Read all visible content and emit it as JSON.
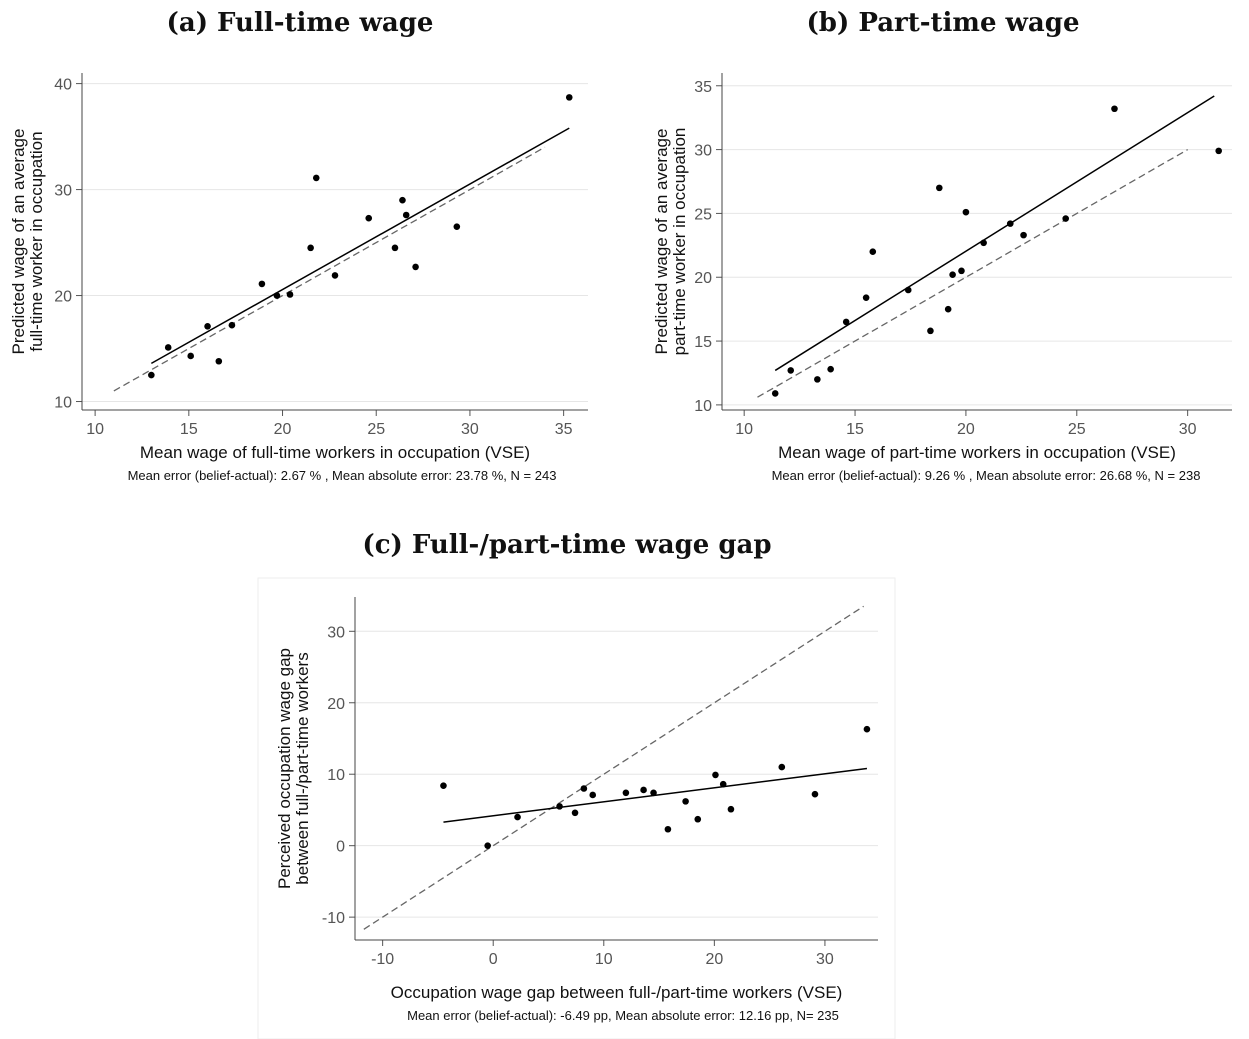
{
  "chart_data": [
    {
      "type": "scatter",
      "title": "(a) Full-time wage",
      "xlabel": "Mean wage of full-time workers in occupation (VSE)",
      "ylabel": "Predicted wage of an average full-time worker in occupation",
      "ylabel_lines": [
        "Predicted wage of an average",
        "full-time worker in occupation"
      ],
      "note": "Mean error (belief-actual): 2.67 % , Mean absolute error: 23.78 %,  N = 243",
      "xlim": [
        9.3,
        36.3
      ],
      "ylim": [
        9.2,
        41.0
      ],
      "xticks": [
        10,
        15,
        20,
        25,
        30,
        35
      ],
      "yticks": [
        10,
        20,
        30,
        40
      ],
      "grid": "horizontal",
      "points": [
        [
          13.0,
          12.5
        ],
        [
          13.9,
          15.1
        ],
        [
          15.1,
          14.3
        ],
        [
          16.0,
          17.1
        ],
        [
          16.6,
          13.8
        ],
        [
          17.3,
          17.2
        ],
        [
          18.9,
          21.1
        ],
        [
          19.7,
          20.0
        ],
        [
          20.4,
          20.1
        ],
        [
          21.5,
          24.5
        ],
        [
          21.8,
          31.1
        ],
        [
          22.8,
          21.9
        ],
        [
          24.6,
          27.3
        ],
        [
          26.0,
          24.5
        ],
        [
          26.4,
          29.0
        ],
        [
          26.6,
          27.6
        ],
        [
          27.1,
          22.7
        ],
        [
          29.3,
          26.5
        ],
        [
          35.3,
          38.7
        ]
      ],
      "fit_line": [
        [
          13.0,
          13.6
        ],
        [
          35.3,
          35.8
        ]
      ],
      "reference_line": [
        [
          11.0,
          11.0
        ],
        [
          34.0,
          34.0
        ]
      ]
    },
    {
      "type": "scatter",
      "title": "(b) Part-time wage",
      "xlabel": "Mean wage of part-time workers in occupation (VSE)",
      "ylabel": "Predicted wage of an average part-time worker in occupation",
      "ylabel_lines": [
        "Predicted wage of an average",
        "part-time worker in occupation"
      ],
      "note": "Mean error (belief-actual): 9.26 % , Mean absolute error: 26.68 %,  N = 238",
      "xlim": [
        9.0,
        32.0
      ],
      "ylim": [
        9.6,
        36.0
      ],
      "xticks": [
        10,
        15,
        20,
        25,
        30
      ],
      "yticks": [
        10,
        15,
        20,
        25,
        30,
        35
      ],
      "grid": "horizontal",
      "points": [
        [
          11.4,
          10.9
        ],
        [
          12.1,
          12.7
        ],
        [
          13.3,
          12.0
        ],
        [
          13.9,
          12.8
        ],
        [
          14.6,
          16.5
        ],
        [
          15.5,
          18.4
        ],
        [
          15.8,
          22.0
        ],
        [
          17.4,
          19.0
        ],
        [
          18.4,
          15.8
        ],
        [
          18.8,
          27.0
        ],
        [
          19.2,
          17.5
        ],
        [
          19.4,
          20.2
        ],
        [
          19.8,
          20.5
        ],
        [
          20.0,
          25.1
        ],
        [
          20.8,
          22.7
        ],
        [
          22.0,
          24.2
        ],
        [
          22.6,
          23.3
        ],
        [
          24.5,
          24.6
        ],
        [
          26.7,
          33.2
        ],
        [
          31.4,
          29.9
        ]
      ],
      "fit_line": [
        [
          11.4,
          12.7
        ],
        [
          31.2,
          34.2
        ]
      ],
      "reference_line": [
        [
          10.6,
          10.6
        ],
        [
          30.0,
          30.0
        ]
      ]
    },
    {
      "type": "scatter",
      "title": "(c) Full-/part-time wage gap",
      "xlabel": "Occupation wage gap between full-/part-time workers (VSE)",
      "ylabel": "Perceived occupation wage gap between full-/part-time workers",
      "ylabel_lines": [
        "Perceived occupation wage gap",
        "between full-/part-time workers"
      ],
      "note": "Mean error (belief-actual): -6.49 pp, Mean absolute error: 12.16 pp, N= 235",
      "xlim": [
        -12.5,
        34.8
      ],
      "ylim": [
        -13.2,
        34.8
      ],
      "xticks": [
        -10,
        0,
        10,
        20,
        30
      ],
      "yticks": [
        -10,
        0,
        10,
        20,
        30
      ],
      "grid": "horizontal",
      "points": [
        [
          -4.5,
          8.4
        ],
        [
          -0.5,
          0.0
        ],
        [
          2.2,
          4.0
        ],
        [
          6.0,
          5.5
        ],
        [
          7.4,
          4.6
        ],
        [
          8.2,
          8.0
        ],
        [
          9.0,
          7.1
        ],
        [
          12.0,
          7.4
        ],
        [
          13.6,
          7.8
        ],
        [
          14.5,
          7.4
        ],
        [
          15.8,
          2.3
        ],
        [
          17.4,
          6.2
        ],
        [
          18.5,
          3.7
        ],
        [
          20.1,
          9.9
        ],
        [
          20.8,
          8.6
        ],
        [
          21.5,
          5.1
        ],
        [
          26.1,
          11.0
        ],
        [
          29.1,
          7.2
        ],
        [
          33.8,
          16.3
        ]
      ],
      "fit_line": [
        [
          -4.5,
          3.3
        ],
        [
          33.8,
          10.8
        ]
      ],
      "reference_line": [
        [
          -11.7,
          -11.7
        ],
        [
          33.5,
          33.5
        ]
      ]
    }
  ]
}
